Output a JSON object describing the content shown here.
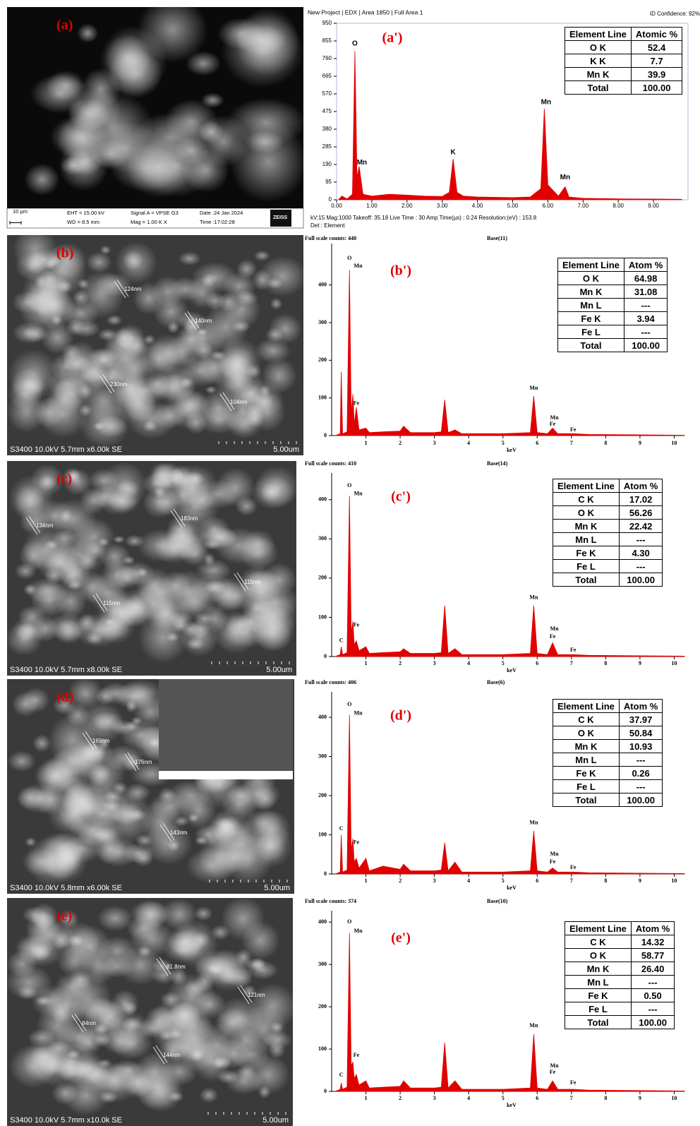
{
  "panels": [
    {
      "label": "(a)",
      "texts": [
        "10 µm",
        "EHT = 15.00 kV",
        "WD =  8.5 mm",
        "Signal A = VPSE G3",
        "Mag =    1.00 K X",
        "Date :24 Jan 2024",
        "Time :17:02:28",
        "ZEISS"
      ]
    },
    {
      "label": "(b)",
      "info": "S3400 10.0kV 5.7mm x6.00k SE",
      "scale": "5.00um",
      "measurements": [
        "124nm",
        "140nm",
        "230nm",
        "104nm"
      ]
    },
    {
      "label": "(c)",
      "info": "S3400 10.0kV 5.7mm x8.00k SE",
      "scale": "5.00um",
      "measurements": [
        "134nm",
        "183nm",
        "115nm",
        "115nm"
      ]
    },
    {
      "label": "(d)",
      "info": "S3400 10.0kV 5.8mm x6.00k SE",
      "scale": "5.00um",
      "measurements": [
        "169nm",
        "176nm",
        "143nm"
      ]
    },
    {
      "label": "(e)",
      "info": "S3400 10.0kV 5.7mm x10.0k SE",
      "scale": "5.00um",
      "measurements": [
        "81.8nm",
        "121nm",
        "84nm",
        "144nm"
      ]
    }
  ],
  "chart_data": [
    {
      "type": "area",
      "panel_label": "(a')",
      "title": "New Project | EDX | Area 1850 | Full Area 1",
      "subtitle": "ID Confidence: 92%",
      "notes": [
        "kV:15    Mag:1000    Takeoff: 35.18    Live Time : 30    Amp Time(µs) : 0.24    Resolution:(eV) : 153.8",
        "Det : Element"
      ],
      "color": "#e00000",
      "xlim": [
        0,
        9.98
      ],
      "ylim": [
        0,
        950
      ],
      "xticks": [
        {
          "value": 0,
          "label": "0.00"
        },
        {
          "value": 1,
          "label": "1.00"
        },
        {
          "value": 2,
          "label": "2.00"
        },
        {
          "value": 3,
          "label": "3.00"
        },
        {
          "value": 4,
          "label": "4.00"
        },
        {
          "value": 5,
          "label": "5.00"
        },
        {
          "value": 6,
          "label": "6.00"
        },
        {
          "value": 7,
          "label": "7.00"
        },
        {
          "value": 8,
          "label": "8.00"
        },
        {
          "value": 9,
          "label": "9.00"
        }
      ],
      "yticks": [
        0,
        95,
        190,
        285,
        380,
        475,
        570,
        665,
        760,
        855,
        950
      ],
      "x": [
        0.05,
        0.15,
        0.3,
        0.45,
        0.52,
        0.58,
        0.64,
        0.75,
        1.0,
        1.5,
        2.0,
        2.5,
        3.0,
        3.2,
        3.31,
        3.42,
        3.6,
        4.0,
        5.0,
        5.5,
        5.8,
        5.9,
        6.0,
        6.3,
        6.49,
        6.6,
        7.0,
        8.0,
        9.0,
        9.8
      ],
      "values": [
        0,
        20,
        5,
        30,
        800,
        120,
        180,
        30,
        20,
        30,
        25,
        20,
        18,
        40,
        220,
        40,
        20,
        15,
        12,
        15,
        60,
        490,
        80,
        20,
        70,
        15,
        8,
        5,
        4,
        3
      ],
      "peak_labels": [
        "O",
        "Mn",
        "K",
        "Mn",
        "Mn"
      ],
      "table": {
        "header": [
          "Element Line",
          "Atomic %"
        ],
        "rows": [
          [
            "O K",
            "52.4"
          ],
          [
            "K K",
            "7.7"
          ],
          [
            "Mn K",
            "39.9"
          ],
          [
            "Total",
            "100.00"
          ]
        ]
      }
    },
    {
      "type": "area",
      "panel_label": "(b')",
      "title": "Full scale counts: 440",
      "subtitle": "Base(11)",
      "x_label": "keV",
      "color": "#e00000",
      "xlim": [
        0,
        10.3
      ],
      "ylim": [
        0,
        510
      ],
      "xticks": [
        1,
        2,
        3,
        4,
        5,
        6,
        7,
        8,
        9,
        10
      ],
      "yticks": [
        0,
        100,
        200,
        300,
        400
      ],
      "x": [
        0.1,
        0.25,
        0.28,
        0.32,
        0.45,
        0.52,
        0.57,
        0.62,
        0.66,
        0.72,
        0.8,
        1.0,
        1.1,
        1.5,
        2.0,
        2.1,
        2.3,
        3.0,
        3.2,
        3.3,
        3.4,
        3.6,
        3.8,
        5.0,
        5.8,
        5.9,
        6.0,
        6.3,
        6.45,
        6.6,
        7.05,
        7.5,
        9,
        10.3
      ],
      "values": [
        0,
        5,
        170,
        5,
        10,
        440,
        60,
        110,
        30,
        75,
        15,
        20,
        8,
        10,
        12,
        25,
        8,
        8,
        10,
        95,
        8,
        15,
        5,
        5,
        8,
        105,
        8,
        5,
        20,
        5,
        5,
        3,
        2,
        1
      ],
      "peak_labels": [
        "O",
        "Mn",
        "Fe",
        "Mn",
        "Mn",
        "Fe",
        "Fe"
      ],
      "table": {
        "header": [
          "Element Line",
          "Atom %"
        ],
        "rows": [
          [
            "O K",
            "64.98"
          ],
          [
            "Mn K",
            "31.08"
          ],
          [
            "Mn L",
            "---"
          ],
          [
            "Fe K",
            "3.94"
          ],
          [
            "Fe L",
            "---"
          ],
          [
            "Total",
            "100.00"
          ]
        ]
      }
    },
    {
      "type": "area",
      "panel_label": "(c')",
      "title": "Full scale counts: 410",
      "subtitle": "Base(14)",
      "x_label": "keV",
      "color": "#e00000",
      "xlim": [
        0,
        10.3
      ],
      "ylim": [
        0,
        468
      ],
      "xticks": [
        1,
        2,
        3,
        4,
        5,
        6,
        7,
        8,
        9,
        10
      ],
      "yticks": [
        0,
        100,
        200,
        300,
        400
      ],
      "x": [
        0.1,
        0.25,
        0.28,
        0.32,
        0.45,
        0.52,
        0.57,
        0.62,
        0.66,
        0.72,
        0.8,
        1.0,
        1.1,
        1.5,
        2.0,
        2.1,
        2.3,
        3.0,
        3.2,
        3.3,
        3.4,
        3.6,
        3.8,
        5.0,
        5.8,
        5.9,
        6.0,
        6.3,
        6.45,
        6.6,
        7.05,
        7.5,
        9,
        10.3
      ],
      "values": [
        0,
        5,
        25,
        5,
        10,
        410,
        60,
        90,
        30,
        40,
        15,
        25,
        8,
        10,
        12,
        20,
        8,
        8,
        10,
        130,
        8,
        20,
        5,
        5,
        8,
        130,
        8,
        5,
        35,
        5,
        5,
        3,
        2,
        1
      ],
      "peak_labels": [
        "O",
        "Mn",
        "Fe",
        "C",
        "Mn",
        "Mn",
        "Fe",
        "Fe"
      ],
      "table": {
        "header": [
          "Element Line",
          "Atom %"
        ],
        "rows": [
          [
            "C K",
            "17.02"
          ],
          [
            "O K",
            "56.26"
          ],
          [
            "Mn K",
            "22.42"
          ],
          [
            "Mn L",
            "---"
          ],
          [
            "Fe K",
            "4.30"
          ],
          [
            "Fe L",
            "---"
          ],
          [
            "Total",
            "100.00"
          ]
        ]
      }
    },
    {
      "type": "area",
      "panel_label": "(d')",
      "title": "Full scale counts: 406",
      "subtitle": "Base(6)",
      "x_label": "keV",
      "color": "#e00000",
      "xlim": [
        0,
        10.3
      ],
      "ylim": [
        0,
        465
      ],
      "xticks": [
        1,
        2,
        3,
        4,
        5,
        6,
        7,
        8,
        9,
        10
      ],
      "yticks": [
        0,
        100,
        200,
        300,
        400
      ],
      "x": [
        0.1,
        0.25,
        0.28,
        0.32,
        0.45,
        0.52,
        0.57,
        0.62,
        0.66,
        0.72,
        0.8,
        1.0,
        1.1,
        1.5,
        2.0,
        2.1,
        2.3,
        3.0,
        3.2,
        3.3,
        3.4,
        3.6,
        3.8,
        5.0,
        5.8,
        5.9,
        6.0,
        6.3,
        6.45,
        6.6,
        7.05,
        7.5,
        9,
        10.3
      ],
      "values": [
        0,
        5,
        100,
        5,
        10,
        406,
        60,
        90,
        30,
        40,
        15,
        40,
        8,
        20,
        12,
        25,
        8,
        8,
        10,
        80,
        8,
        30,
        5,
        5,
        8,
        110,
        8,
        5,
        15,
        5,
        5,
        3,
        2,
        1
      ],
      "peak_labels": [
        "O",
        "Mn",
        "Fe",
        "C",
        "Mn",
        "Mn",
        "Fe",
        "Fe"
      ],
      "table": {
        "header": [
          "Element Line",
          "Atom %"
        ],
        "rows": [
          [
            "C K",
            "37.97"
          ],
          [
            "O K",
            "50.84"
          ],
          [
            "Mn K",
            "10.93"
          ],
          [
            "Mn L",
            "---"
          ],
          [
            "Fe K",
            "0.26"
          ],
          [
            "Fe L",
            "---"
          ],
          [
            "Total",
            "100.00"
          ]
        ]
      }
    },
    {
      "type": "area",
      "panel_label": "(e')",
      "title": "Full scale counts: 374",
      "subtitle": "Base(10)",
      "x_label": "keV",
      "color": "#e00000",
      "xlim": [
        0,
        10.3
      ],
      "ylim": [
        0,
        427
      ],
      "xticks": [
        1,
        2,
        3,
        4,
        5,
        6,
        7,
        8,
        9,
        10
      ],
      "yticks": [
        0,
        100,
        200,
        300,
        400
      ],
      "x": [
        0.1,
        0.25,
        0.28,
        0.32,
        0.45,
        0.52,
        0.57,
        0.62,
        0.66,
        0.72,
        0.8,
        1.0,
        1.1,
        1.5,
        2.0,
        2.1,
        2.3,
        3.0,
        3.2,
        3.3,
        3.4,
        3.6,
        3.8,
        5.0,
        5.8,
        5.9,
        6.0,
        6.3,
        6.45,
        6.6,
        7.05,
        7.5,
        9,
        10.3
      ],
      "values": [
        0,
        5,
        20,
        5,
        10,
        374,
        60,
        70,
        30,
        40,
        15,
        25,
        8,
        10,
        12,
        25,
        8,
        8,
        10,
        115,
        8,
        25,
        5,
        5,
        8,
        135,
        8,
        5,
        25,
        5,
        5,
        3,
        2,
        1
      ],
      "peak_labels": [
        "O",
        "Mn",
        "Fe",
        "C",
        "Mn",
        "Mn",
        "Fe",
        "Fe"
      ],
      "table": {
        "header": [
          "Element Line",
          "Atom %"
        ],
        "rows": [
          [
            "C K",
            "14.32"
          ],
          [
            "O K",
            "58.77"
          ],
          [
            "Mn K",
            "26.40"
          ],
          [
            "Mn L",
            "---"
          ],
          [
            "Fe K",
            "0.50"
          ],
          [
            "Fe L",
            "---"
          ],
          [
            "Total",
            "100.00"
          ]
        ]
      }
    }
  ]
}
